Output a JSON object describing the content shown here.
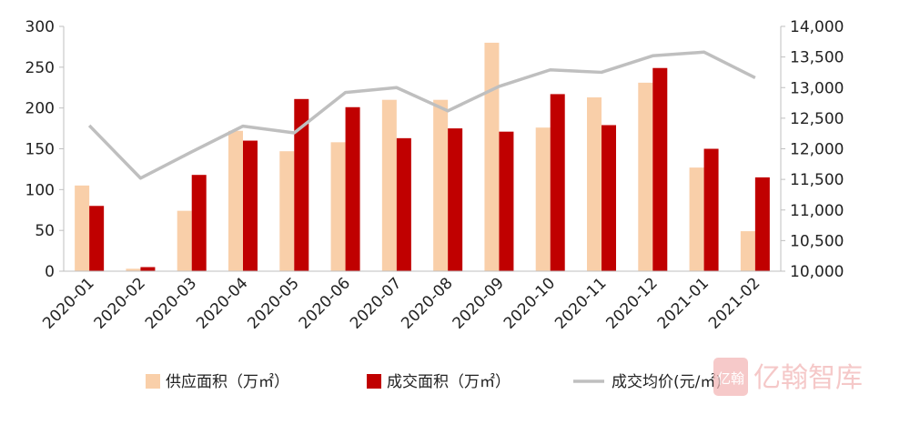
{
  "chart_data": {
    "type": "bar",
    "categories": [
      "2020-01",
      "2020-02",
      "2020-03",
      "2020-04",
      "2020-05",
      "2020-06",
      "2020-07",
      "2020-08",
      "2020-09",
      "2020-10",
      "2020-11",
      "2020-12",
      "2021-01",
      "2021-02"
    ],
    "series": [
      {
        "name": "供应面积（万㎡）",
        "kind": "bar",
        "axis": "left",
        "color": "#f9cfa9",
        "values": [
          105,
          3,
          74,
          172,
          147,
          158,
          210,
          210,
          280,
          176,
          213,
          231,
          127,
          49
        ]
      },
      {
        "name": "成交面积（万㎡）",
        "kind": "bar",
        "axis": "left",
        "color": "#c00000",
        "values": [
          80,
          5,
          118,
          160,
          211,
          201,
          163,
          175,
          171,
          217,
          179,
          249,
          150,
          115
        ]
      },
      {
        "name": "成交均价(元/㎡)",
        "kind": "line",
        "axis": "right",
        "color": "#bfbfbf",
        "values": [
          12380,
          11520,
          11950,
          12370,
          12260,
          12920,
          13000,
          12620,
          13020,
          13290,
          13250,
          13520,
          13580,
          13160
        ]
      }
    ],
    "y_left": {
      "min": 0,
      "max": 300,
      "step": 50,
      "ticks": [
        "0",
        "50",
        "100",
        "150",
        "200",
        "250",
        "300"
      ]
    },
    "y_right": {
      "min": 10000,
      "max": 14000,
      "step": 500,
      "ticks": [
        "10,000",
        "10,500",
        "11,000",
        "11,500",
        "12,000",
        "12,500",
        "13,000",
        "13,500",
        "14,000"
      ]
    },
    "legend": {
      "position": "bottom"
    },
    "grid": false
  },
  "watermark": {
    "text": "亿翰智库",
    "badge": "亿翰",
    "color": "#e57373"
  }
}
